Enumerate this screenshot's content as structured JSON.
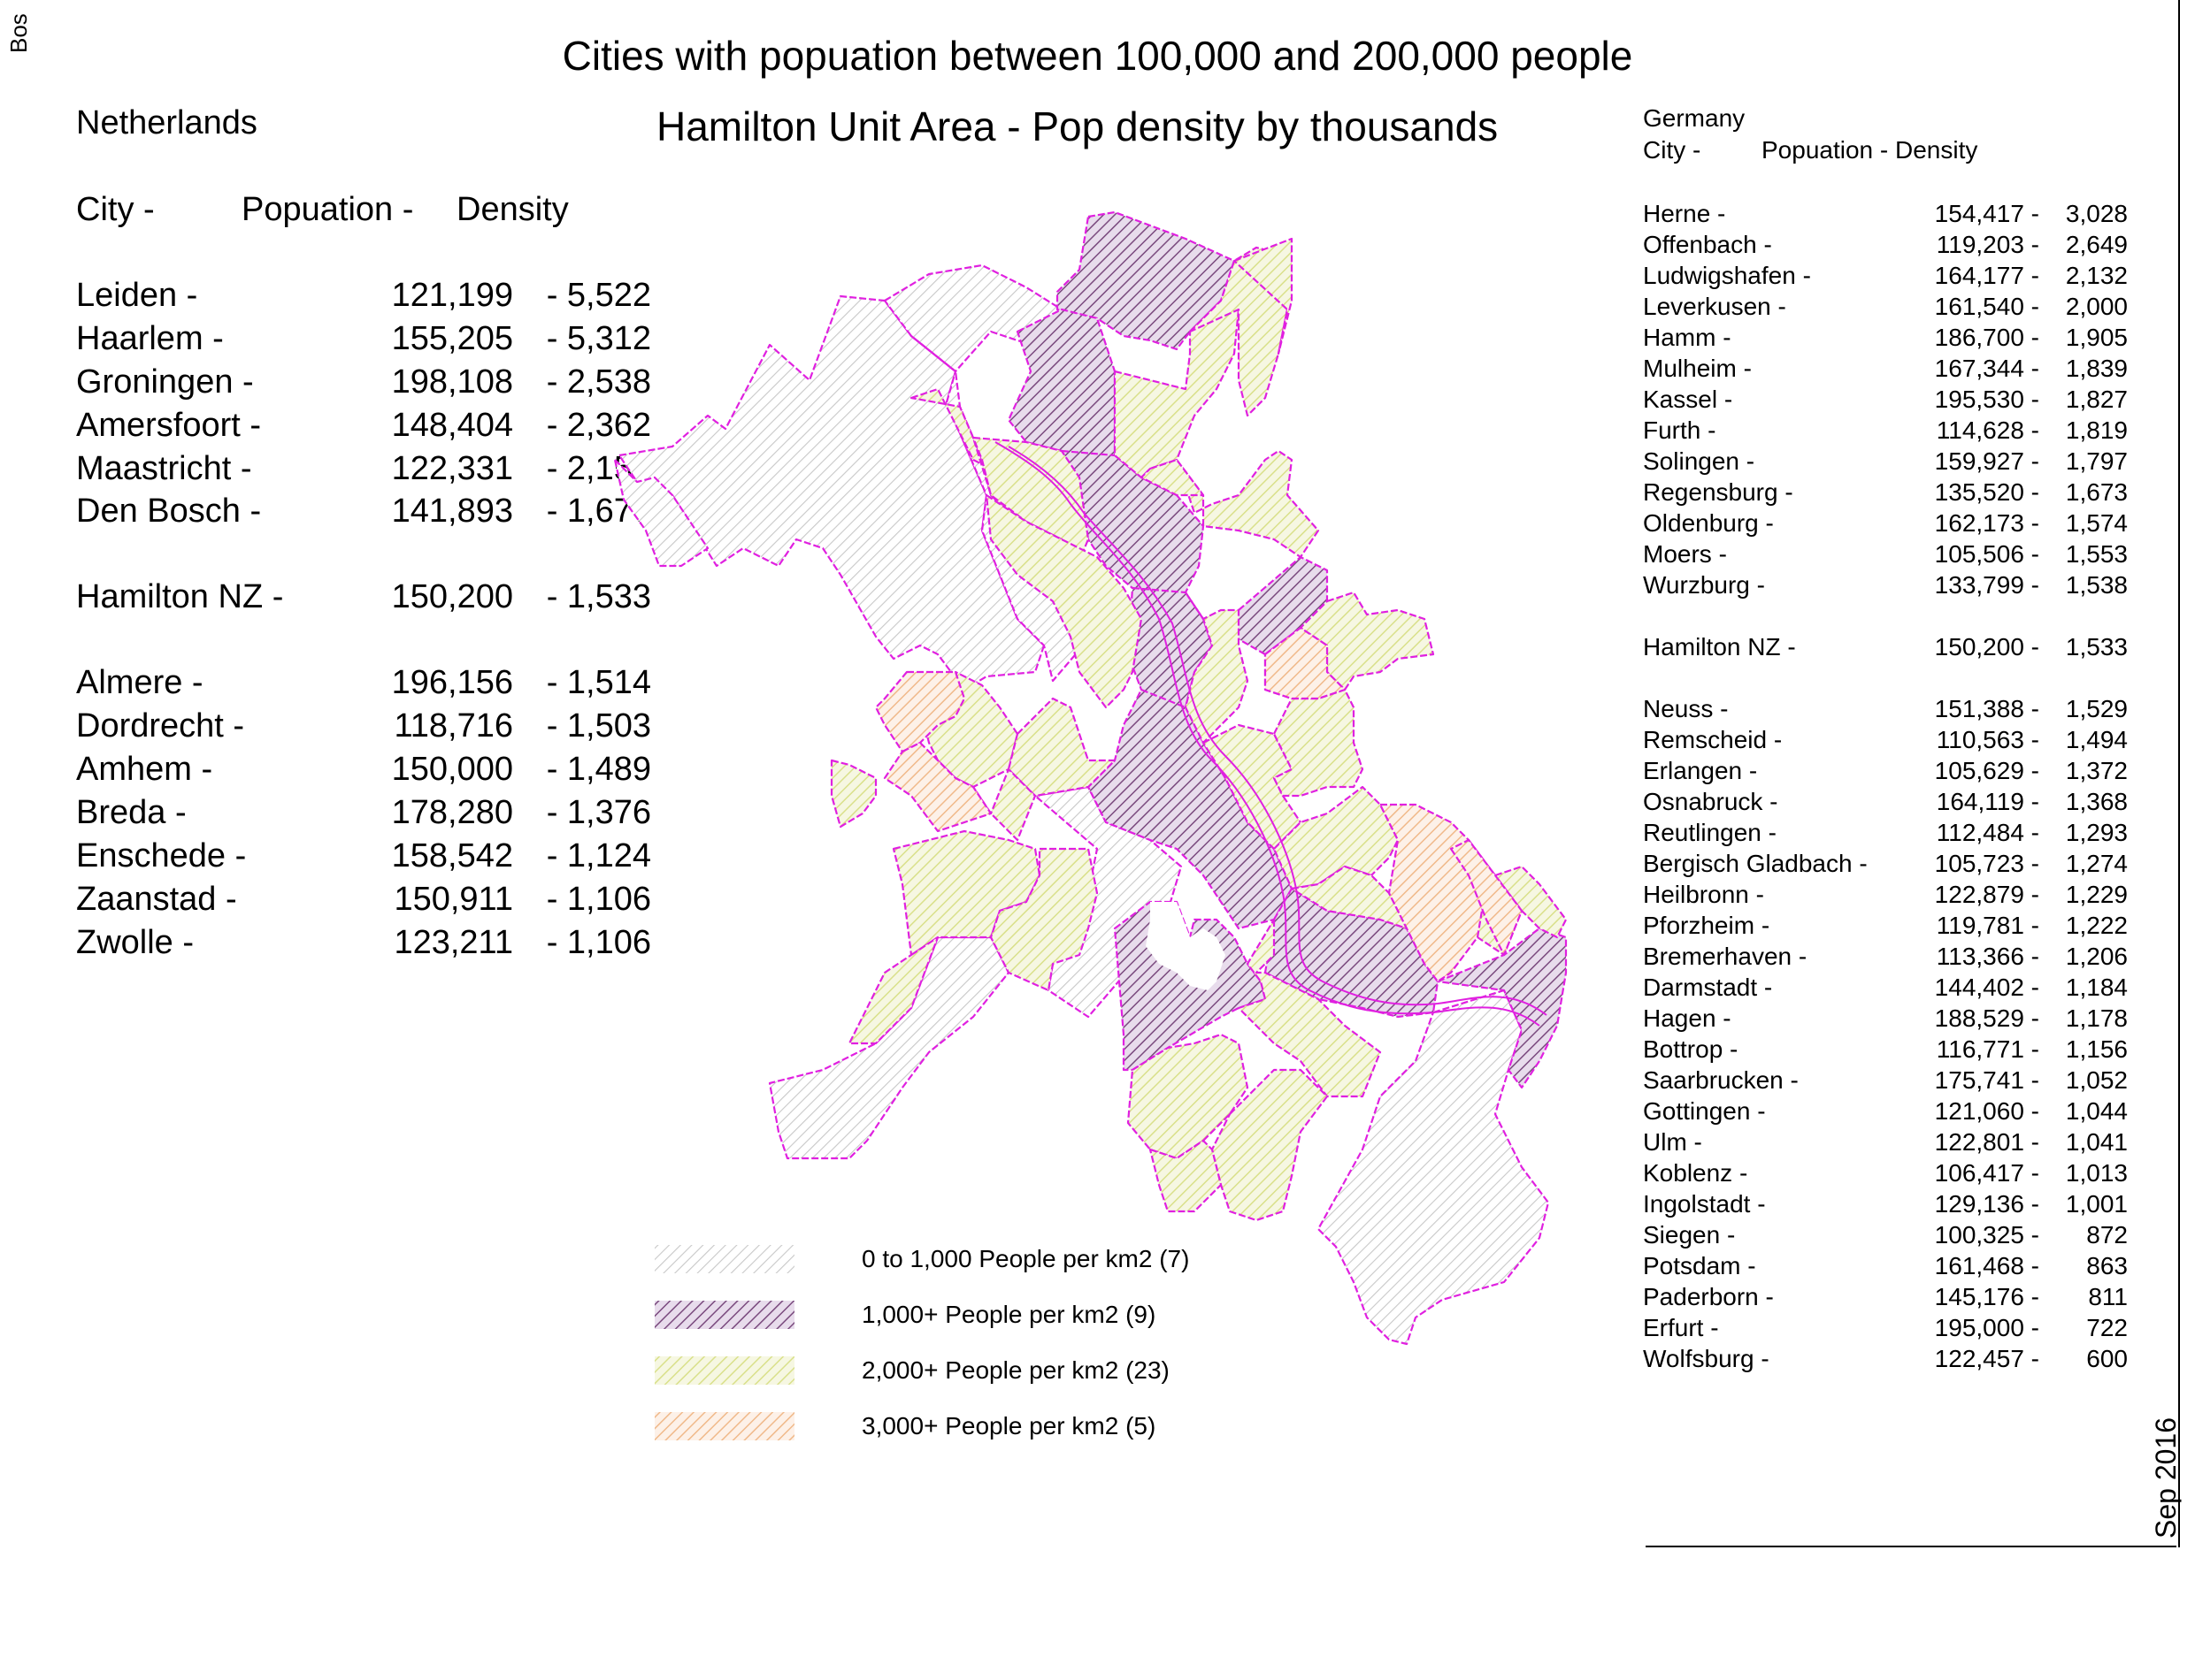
{
  "corner_text": "Bos",
  "title": "Cities with popuation between 100,000 and 200,000 people",
  "map_title": "Hamilton Unit Area - Pop density by thousands",
  "date_stamp": "Sep 2016",
  "netherlands": {
    "country": "Netherlands",
    "header": {
      "city": "City -",
      "population": "Popuation  -",
      "density": "Density"
    },
    "rows": [
      {
        "city": "Leiden  -",
        "population": "121,199",
        "density": "-  5,522"
      },
      {
        "city": "Haarlem  -",
        "population": "155,205",
        "density": "-  5,312"
      },
      {
        "city": "Groningen -",
        "population": "198,108",
        "density": "-  2,538"
      },
      {
        "city": "Amersfoort -",
        "population": "148,404",
        "density": "-  2,362"
      },
      {
        "city": "Maastricht -",
        "population": "122,331",
        "density": "-  2,153"
      },
      {
        "city": "Den Bosch -",
        "population": "141,893",
        "density": "-  1,677"
      },
      {
        "city": "Hamilton NZ -",
        "population": "150,200",
        "density": "-  1,533"
      },
      {
        "city": "Almere -",
        "population": "196,156",
        "density": "-  1,514"
      },
      {
        "city": "Dordrecht -",
        "population": "118,716",
        "density": "-  1,503"
      },
      {
        "city": "Amhem -",
        "population": "150,000",
        "density": "-  1,489"
      },
      {
        "city": "Breda -",
        "population": "178,280",
        "density": "-  1,376"
      },
      {
        "city": "Enschede -",
        "population": "158,542",
        "density": "-  1,124"
      },
      {
        "city": "Zaanstad -",
        "population": "150,911",
        "density": "-  1,106"
      },
      {
        "city": "Zwolle -",
        "population": "123,211",
        "density": "-  1,106"
      }
    ]
  },
  "germany": {
    "country": "Germany",
    "header": {
      "city": "City -",
      "population": "Popuation  -  Density"
    },
    "rows": [
      {
        "city": "Herne -",
        "population": "154,417 -",
        "density": "3,028"
      },
      {
        "city": "Offenbach -",
        "population": "119,203 -",
        "density": "2,649"
      },
      {
        "city": "Ludwigshafen  -",
        "population": "164,177 -",
        "density": "2,132"
      },
      {
        "city": "Leverkusen -",
        "population": "161,540 -",
        "density": "2,000"
      },
      {
        "city": "Hamm -",
        "population": "186,700 -",
        "density": "1,905"
      },
      {
        "city": "Mulheim -",
        "population": "167,344 -",
        "density": "1,839"
      },
      {
        "city": "Kassel -",
        "population": "195,530 -",
        "density": "1,827"
      },
      {
        "city": "Furth -",
        "population": "114,628 -",
        "density": "1,819"
      },
      {
        "city": "Solingen -",
        "population": "159,927 -",
        "density": "1,797"
      },
      {
        "city": "Regensburg -",
        "population": "135,520 -",
        "density": "1,673"
      },
      {
        "city": "Oldenburg -",
        "population": "162,173 -",
        "density": "1,574"
      },
      {
        "city": "Moers -",
        "population": "105,506 -",
        "density": "1,553"
      },
      {
        "city": "Wurzburg -",
        "population": "133,799 -",
        "density": "1,538"
      },
      {
        "city": "Hamilton NZ -",
        "population": "150,200 -",
        "density": "1,533"
      },
      {
        "city": "Neuss -",
        "population": "151,388 -",
        "density": "1,529"
      },
      {
        "city": "Remscheid -",
        "population": "110,563 -",
        "density": "1,494"
      },
      {
        "city": "Erlangen -",
        "population": "105,629 -",
        "density": "1,372"
      },
      {
        "city": "Osnabruck -",
        "population": "164,119 -",
        "density": "1,368"
      },
      {
        "city": "Reutlingen -",
        "population": "112,484 -",
        "density": "1,293"
      },
      {
        "city": "Bergisch Gladbach -",
        "population": "105,723 -",
        "density": "1,274"
      },
      {
        "city": "Heilbronn -",
        "population": "122,879 -",
        "density": "1,229"
      },
      {
        "city": "Pforzheim -",
        "population": "119,781 -",
        "density": "1,222"
      },
      {
        "city": "Bremerhaven -",
        "population": "113,366 -",
        "density": "1,206"
      },
      {
        "city": "Darmstadt -",
        "population": "144,402 -",
        "density": "1,184"
      },
      {
        "city": "Hagen -",
        "population": "188,529 -",
        "density": "1,178"
      },
      {
        "city": "Bottrop -",
        "population": "116,771 -",
        "density": "1,156"
      },
      {
        "city": "Saarbrucken -",
        "population": "175,741 -",
        "density": "1,052"
      },
      {
        "city": "Gottingen -",
        "population": "121,060 -",
        "density": "1,044"
      },
      {
        "city": "Ulm -",
        "population": "122,801 -",
        "density": "1,041"
      },
      {
        "city": "Koblenz -",
        "population": "106,417 -",
        "density": "1,013"
      },
      {
        "city": "Ingolstadt -",
        "population": "129,136 -",
        "density": "1,001"
      },
      {
        "city": "Siegen -",
        "population": "100,325 -",
        "density": "872"
      },
      {
        "city": "Potsdam -",
        "population": "161,468 -",
        "density": "863"
      },
      {
        "city": "Paderborn -",
        "population": "145,176 -",
        "density": "811"
      },
      {
        "city": "Erfurt -",
        "population": "195,000 -",
        "density": "722"
      },
      {
        "city": "Wolfsburg -",
        "population": "122,457 -",
        "density": "600"
      }
    ]
  },
  "legend": [
    {
      "label": "0 to 1,000 People per km2 (7)",
      "color": "#c8c8c8"
    },
    {
      "label": "1,000+ People per km2 (9)",
      "color": "#7a4a7e"
    },
    {
      "label": "2,000+ People per km2 (23)",
      "color": "#d9e08a"
    },
    {
      "label": "3,000+ People per km2 (5)",
      "color": "#f0b98a"
    }
  ],
  "colors": {
    "boundary": "#e020e0",
    "river_fill": "#ffffff"
  }
}
